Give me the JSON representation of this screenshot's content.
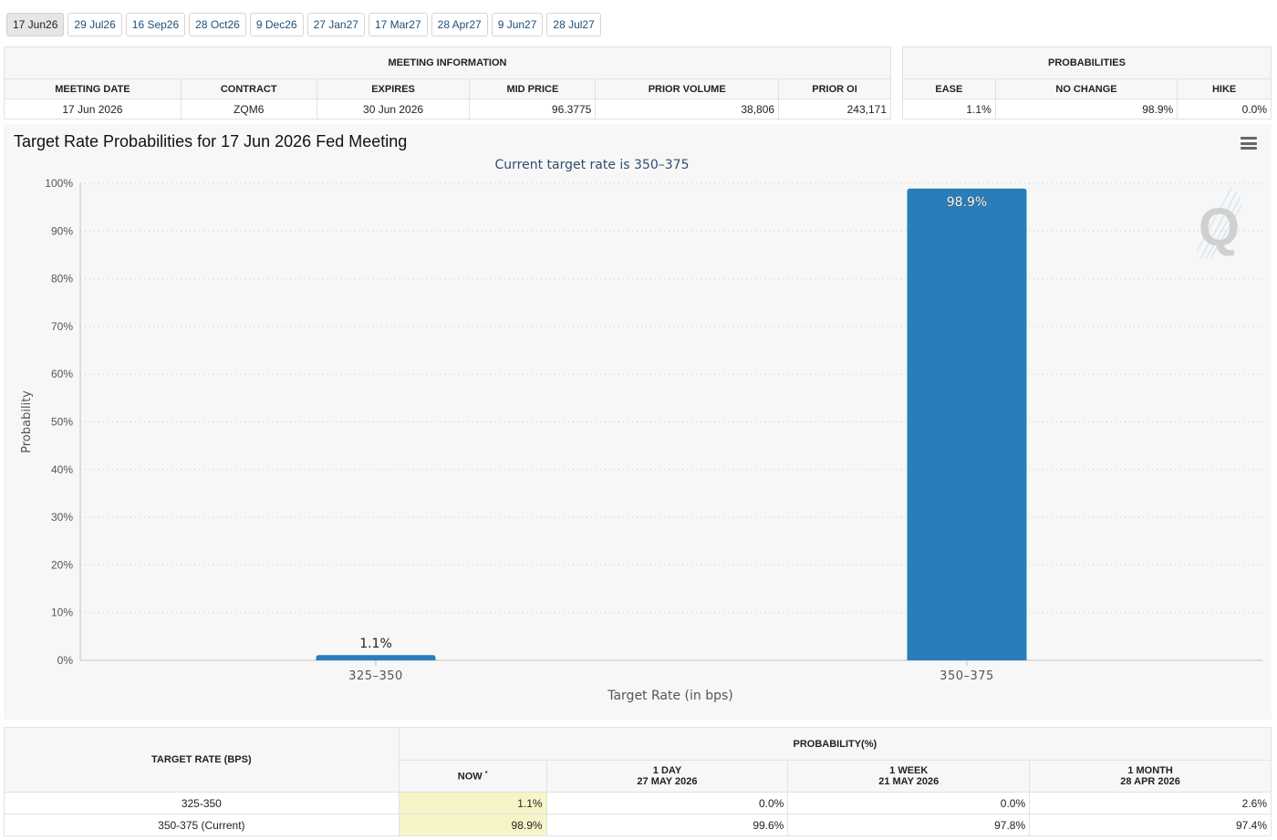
{
  "tabs": [
    "17 Jun26",
    "29 Jul26",
    "16 Sep26",
    "28 Oct26",
    "9 Dec26",
    "27 Jan27",
    "17 Mar27",
    "28 Apr27",
    "9 Jun27",
    "28 Jul27"
  ],
  "meeting_info": {
    "title": "MEETING INFORMATION",
    "headers": [
      "MEETING DATE",
      "CONTRACT",
      "EXPIRES",
      "MID PRICE",
      "PRIOR VOLUME",
      "PRIOR OI"
    ],
    "row": [
      "17 Jun 2026",
      "ZQM6",
      "30 Jun 2026",
      "96.3775",
      "38,806",
      "243,171"
    ]
  },
  "probabilities": {
    "title": "PROBABILITIES",
    "headers": [
      "EASE",
      "NO CHANGE",
      "HIKE"
    ],
    "row": [
      "1.1%",
      "98.9%",
      "0.0%"
    ]
  },
  "chart": {
    "title": "Target Rate Probabilities for 17 Jun 2026 Fed Meeting"
  },
  "chart_data": {
    "type": "bar",
    "title": "Target Rate Probabilities for 17 Jun 2026 Fed Meeting",
    "subtitle": "Current target rate is 350–375",
    "categories": [
      "325–350",
      "350–375"
    ],
    "values": [
      1.1,
      98.9
    ],
    "data_labels": [
      "1.1%",
      "98.9%"
    ],
    "xlabel": "Target Rate (in bps)",
    "ylabel": "Probability",
    "ylim": [
      0,
      100
    ],
    "yticks": [
      "0%",
      "10%",
      "20%",
      "30%",
      "40%",
      "50%",
      "60%",
      "70%",
      "80%",
      "90%",
      "100%"
    ],
    "grid": true,
    "bar_color": "#2a7db8"
  },
  "prob_table": {
    "rate_header": "TARGET RATE (BPS)",
    "group_header": "PROBABILITY(%)",
    "now_label": "NOW",
    "now_marker": "*",
    "columns": [
      {
        "label": "1 DAY",
        "date": "27 MAY 2026"
      },
      {
        "label": "1 WEEK",
        "date": "21 MAY 2026"
      },
      {
        "label": "1 MONTH",
        "date": "28 APR 2026"
      }
    ],
    "rows": [
      {
        "rate": "325-350",
        "now": "1.1%",
        "values": [
          "0.0%",
          "0.0%",
          "2.6%"
        ]
      },
      {
        "rate": "350-375 (Current)",
        "now": "98.9%",
        "values": [
          "99.6%",
          "97.8%",
          "97.4%"
        ]
      }
    ]
  }
}
